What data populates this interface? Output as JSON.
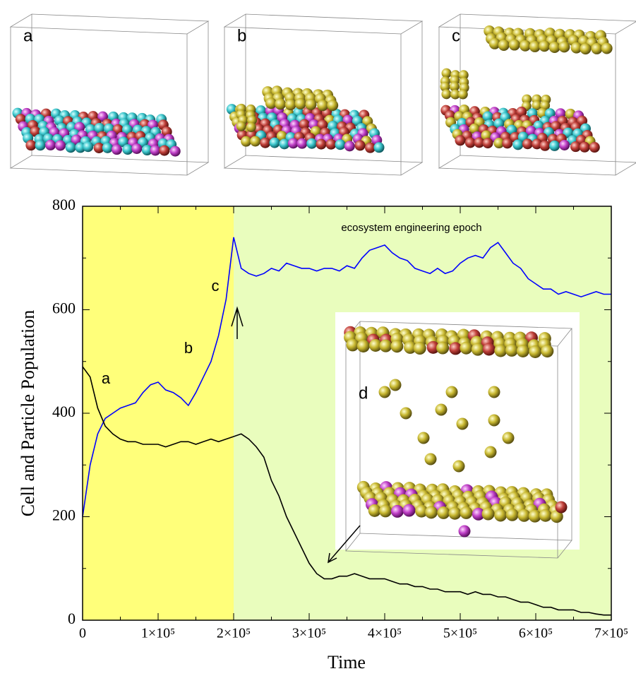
{
  "chart_data": {
    "type": "line",
    "xlabel": "Time",
    "ylabel": "Cell and Particle Population",
    "xlim": [
      0,
      700000
    ],
    "ylim": [
      0,
      800
    ],
    "xticks": [
      0,
      {
        "value": 100000,
        "label": "1×10⁵"
      },
      {
        "value": 200000,
        "label": "2×10⁵"
      },
      {
        "value": 300000,
        "label": "3×10⁵"
      },
      {
        "value": 400000,
        "label": "4×10⁵"
      },
      {
        "value": 500000,
        "label": "5×10⁵"
      },
      {
        "value": 600000,
        "label": "6×10⁵"
      },
      {
        "value": 700000,
        "label": "7×10⁵"
      }
    ],
    "yticks": [
      0,
      200,
      400,
      600,
      800
    ],
    "shaded_regions": [
      {
        "xlim": [
          0,
          200000
        ],
        "color": "#ffff7a"
      },
      {
        "xlim": [
          200000,
          700000
        ],
        "color": "#e9fdbd"
      }
    ],
    "annotations": [
      "a",
      "b",
      "c",
      "ecosystem engineering epoch"
    ],
    "panel_labels": [
      "a",
      "b",
      "c",
      "d"
    ],
    "x": [
      0,
      10000,
      20000,
      30000,
      40000,
      50000,
      60000,
      70000,
      80000,
      90000,
      100000,
      110000,
      120000,
      130000,
      140000,
      150000,
      160000,
      170000,
      180000,
      190000,
      200000,
      210000,
      220000,
      230000,
      240000,
      250000,
      260000,
      270000,
      280000,
      290000,
      300000,
      310000,
      320000,
      330000,
      340000,
      350000,
      360000,
      370000,
      380000,
      390000,
      400000,
      410000,
      420000,
      430000,
      440000,
      450000,
      460000,
      470000,
      480000,
      490000,
      500000,
      510000,
      520000,
      530000,
      540000,
      550000,
      560000,
      570000,
      580000,
      590000,
      600000,
      610000,
      620000,
      630000,
      640000,
      650000,
      660000,
      670000,
      680000,
      690000,
      700000
    ],
    "series": [
      {
        "color": "#0000ff",
        "values": [
          200,
          300,
          360,
          390,
          400,
          410,
          415,
          420,
          440,
          455,
          460,
          445,
          440,
          430,
          415,
          440,
          470,
          500,
          550,
          620,
          740,
          680,
          670,
          665,
          670,
          680,
          675,
          690,
          685,
          680,
          680,
          675,
          680,
          680,
          675,
          685,
          680,
          700,
          715,
          720,
          725,
          710,
          700,
          695,
          680,
          675,
          670,
          680,
          670,
          675,
          690,
          700,
          705,
          700,
          720,
          730,
          710,
          690,
          680,
          660,
          650,
          640,
          640,
          630,
          635,
          630,
          625,
          630,
          635,
          630,
          630
        ]
      },
      {
        "color": "#000000",
        "values": [
          490,
          470,
          410,
          375,
          360,
          350,
          345,
          345,
          340,
          340,
          340,
          335,
          340,
          345,
          345,
          340,
          345,
          350,
          345,
          350,
          355,
          360,
          350,
          335,
          315,
          270,
          240,
          200,
          170,
          140,
          110,
          90,
          80,
          80,
          85,
          85,
          90,
          85,
          80,
          80,
          80,
          75,
          70,
          70,
          65,
          65,
          60,
          60,
          55,
          55,
          55,
          50,
          55,
          50,
          50,
          45,
          45,
          40,
          35,
          35,
          30,
          25,
          25,
          20,
          20,
          20,
          15,
          15,
          12,
          10,
          10
        ]
      }
    ]
  }
}
